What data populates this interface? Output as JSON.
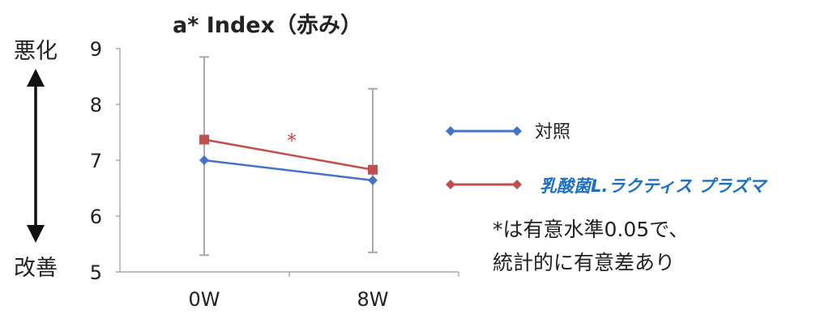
{
  "chart_data": {
    "type": "line",
    "title": "a* Index（赤み）",
    "categories": [
      "0W",
      "8W"
    ],
    "ylim": [
      5,
      9
    ],
    "yticks": [
      "9",
      "8",
      "7",
      "6",
      "5"
    ],
    "series": [
      {
        "name": "対照",
        "color": "#4472C4",
        "values": [
          7.0,
          6.64
        ]
      },
      {
        "name": "乳酸菌L.ラクティス プラズマ",
        "color": "#C0504D",
        "values": [
          7.37,
          6.83
        ],
        "error_low": [
          5.3,
          5.35
        ],
        "error_high": [
          8.85,
          8.28
        ]
      }
    ],
    "significance_mark": "*",
    "grid": false,
    "legend_position": "right"
  },
  "y_direction": {
    "top_label": "悪化",
    "bottom_label": "改善"
  },
  "legend": {
    "control_label": "対照",
    "treatment_label": "乳酸菌L.ラクティス プラズマ",
    "treatment_color": "#1f6fc0"
  },
  "footnote": {
    "line1": "*は有意水準0.05で、",
    "line2": "統計的に有意差あり"
  }
}
